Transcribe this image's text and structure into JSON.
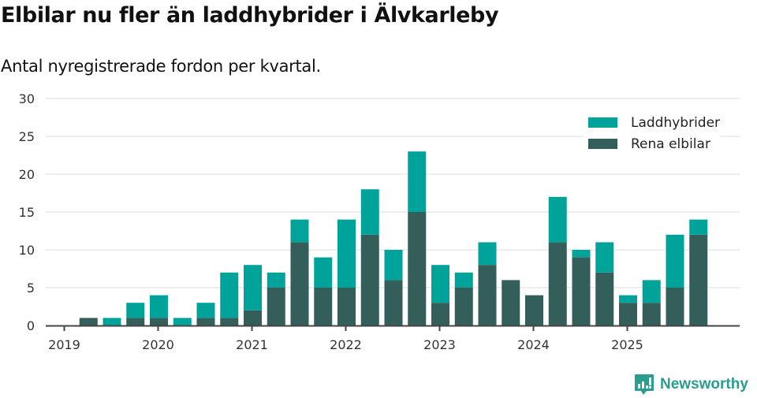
{
  "header": {
    "title": "Elbilar nu fler än laddhybrider i Älvkarleby",
    "subtitle": "Antal nyregistrerade fordon per kvartal."
  },
  "colors": {
    "laddhybrider": "#00a39a",
    "rena_elbilar": "#335e5a",
    "grid": "#e3e3e3",
    "axis": "#444444",
    "brand": "#2a9d8f"
  },
  "legend": {
    "items": [
      {
        "label": "Laddhybrider",
        "color": "#00a39a"
      },
      {
        "label": "Rena elbilar",
        "color": "#335e5a"
      }
    ]
  },
  "branding": {
    "logo_text": "Newsworthy"
  },
  "chart_data": {
    "type": "bar",
    "stacked": true,
    "title": "Elbilar nu fler än laddhybrider i Älvkarleby",
    "subtitle": "Antal nyregistrerade fordon per kvartal.",
    "xlabel": "",
    "ylabel": "",
    "ylim": [
      0,
      30
    ],
    "yticks": [
      0,
      5,
      10,
      15,
      20,
      25,
      30
    ],
    "xticks": [
      "2019",
      "2020",
      "2021",
      "2022",
      "2023",
      "2024",
      "2025"
    ],
    "grid": true,
    "legend_position": "top-right",
    "categories": [
      "2019 Q1",
      "2019 Q2",
      "2019 Q3",
      "2019 Q4",
      "2020 Q1",
      "2020 Q2",
      "2020 Q3",
      "2020 Q4",
      "2021 Q1",
      "2021 Q2",
      "2021 Q3",
      "2021 Q4",
      "2022 Q1",
      "2022 Q2",
      "2022 Q3",
      "2022 Q4",
      "2023 Q1",
      "2023 Q2",
      "2023 Q3",
      "2023 Q4",
      "2024 Q1",
      "2024 Q2",
      "2024 Q3",
      "2024 Q4",
      "2025 Q1",
      "2025 Q2",
      "2025 Q3",
      "2025 Q4"
    ],
    "series": [
      {
        "name": "Rena elbilar",
        "color": "#335e5a",
        "values": [
          0,
          1,
          0,
          1,
          1,
          0,
          1,
          1,
          2,
          5,
          11,
          5,
          5,
          12,
          6,
          15,
          3,
          5,
          8,
          6,
          4,
          11,
          9,
          7,
          3,
          3,
          5,
          12
        ]
      },
      {
        "name": "Laddhybrider",
        "color": "#00a39a",
        "values": [
          0,
          0,
          1,
          2,
          3,
          1,
          2,
          6,
          6,
          2,
          3,
          4,
          9,
          6,
          4,
          8,
          5,
          2,
          3,
          0,
          0,
          6,
          1,
          4,
          1,
          3,
          7,
          2
        ]
      }
    ]
  }
}
